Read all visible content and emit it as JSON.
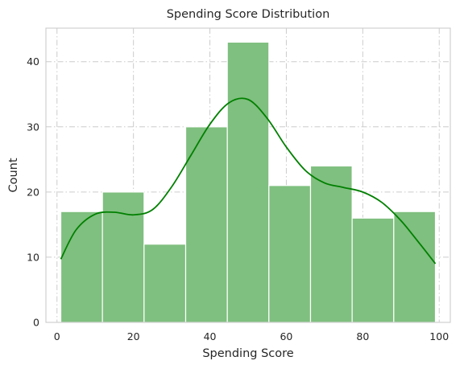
{
  "chart_data": {
    "type": "bar",
    "title": "Spending Score Distribution",
    "xlabel": "Spending Score",
    "ylabel": "Count",
    "xlim": [
      -2.9,
      102.9
    ],
    "ylim": [
      0,
      45.15
    ],
    "xticks": [
      0,
      20,
      40,
      60,
      80,
      100
    ],
    "yticks": [
      0,
      10,
      20,
      30,
      40
    ],
    "grid": true,
    "bin_edges": [
      1,
      11.89,
      22.78,
      33.67,
      44.56,
      55.44,
      66.33,
      77.22,
      88.11,
      99
    ],
    "counts": [
      17,
      20,
      12,
      30,
      43,
      21,
      24,
      16,
      17
    ],
    "bar_color": "#7fbf7f",
    "kde": {
      "color": "#008000",
      "x": [
        1,
        5,
        10,
        15,
        20,
        25,
        30,
        35,
        40,
        45,
        50,
        55,
        60,
        65,
        70,
        75,
        80,
        85,
        90,
        95,
        99
      ],
      "y": [
        9.7,
        14.2,
        16.6,
        16.9,
        16.5,
        17.3,
        20.8,
        25.6,
        30.4,
        33.7,
        34.2,
        31.3,
        26.9,
        23.3,
        21.4,
        20.7,
        20.0,
        18.4,
        15.6,
        12.0,
        9.0
      ]
    },
    "colors": {
      "axes_edge": "#cccccc",
      "grid": "#cccccc",
      "text": "#262626",
      "background": "#ffffff"
    }
  }
}
